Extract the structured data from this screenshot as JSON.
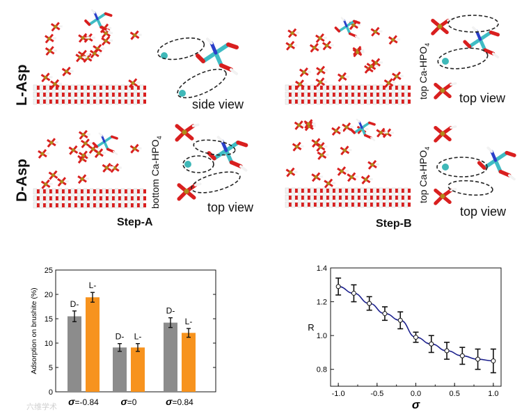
{
  "molecular_figure": {
    "row_labels": [
      "L-Asp",
      "D-Asp"
    ],
    "step_labels": [
      "Step-A",
      "Step-B"
    ],
    "view_labels": {
      "a_top_right": "side view",
      "a_bottom_right": "top view",
      "b_top_right": "top view",
      "b_bottom_right": "top view"
    },
    "vertical_labels": {
      "a_bottom": "bottom Ca-HPO",
      "b_top": "top Ca-HPO",
      "b_bottom": "top Ca-HPO",
      "subscript": "4"
    },
    "colors": {
      "oxygen": "#d91f1f",
      "hydrogen": "#f2f2f2",
      "phosphorus": "#b08a1a",
      "carbon": "#3fbcc4",
      "nitrogen": "#2a3fc9",
      "calcium": "#3fb8b8"
    }
  },
  "chart_data": [
    {
      "type": "bar",
      "ylabel": "Adsorption on brushite (%)",
      "ylim": [
        0,
        25
      ],
      "yticks": [
        0,
        5,
        10,
        15,
        20,
        25
      ],
      "groups": [
        "σ=-0.84",
        "σ=0",
        "σ=0.84"
      ],
      "group_symbol": "σ",
      "group_values": [
        "=-0.84",
        "=0",
        "=0.84"
      ],
      "series": [
        {
          "name": "D-",
          "color": "#8c8c8c",
          "values": [
            15.5,
            9.1,
            14.2
          ],
          "errors": [
            1.1,
            0.8,
            1.0
          ]
        },
        {
          "name": "L-",
          "color": "#f7931e",
          "values": [
            19.4,
            9.1,
            12.1
          ],
          "errors": [
            1.0,
            0.8,
            0.9
          ]
        }
      ]
    },
    {
      "type": "scatter",
      "xlabel": "σ",
      "ylabel": "R",
      "xlim": [
        -1.1,
        1.1
      ],
      "ylim": [
        0.7,
        1.4
      ],
      "xticks": [
        "-1.0",
        "-0.5",
        "0.0",
        "0.5",
        "1.0"
      ],
      "yticks": [
        "0.8",
        "1.0",
        "1.2",
        "1.4"
      ],
      "points": [
        {
          "x": -1.0,
          "y": 1.29,
          "err": 0.05
        },
        {
          "x": -0.8,
          "y": 1.25,
          "err": 0.05
        },
        {
          "x": -0.6,
          "y": 1.19,
          "err": 0.04
        },
        {
          "x": -0.4,
          "y": 1.13,
          "err": 0.04
        },
        {
          "x": -0.2,
          "y": 1.09,
          "err": 0.05
        },
        {
          "x": 0.0,
          "y": 0.99,
          "err": 0.03
        },
        {
          "x": 0.2,
          "y": 0.95,
          "err": 0.05
        },
        {
          "x": 0.4,
          "y": 0.91,
          "err": 0.05
        },
        {
          "x": 0.6,
          "y": 0.88,
          "err": 0.05
        },
        {
          "x": 0.8,
          "y": 0.86,
          "err": 0.06
        },
        {
          "x": 1.0,
          "y": 0.85,
          "err": 0.07
        }
      ],
      "fit_color": "#1a1f8c"
    }
  ],
  "watermark": "六维学术"
}
